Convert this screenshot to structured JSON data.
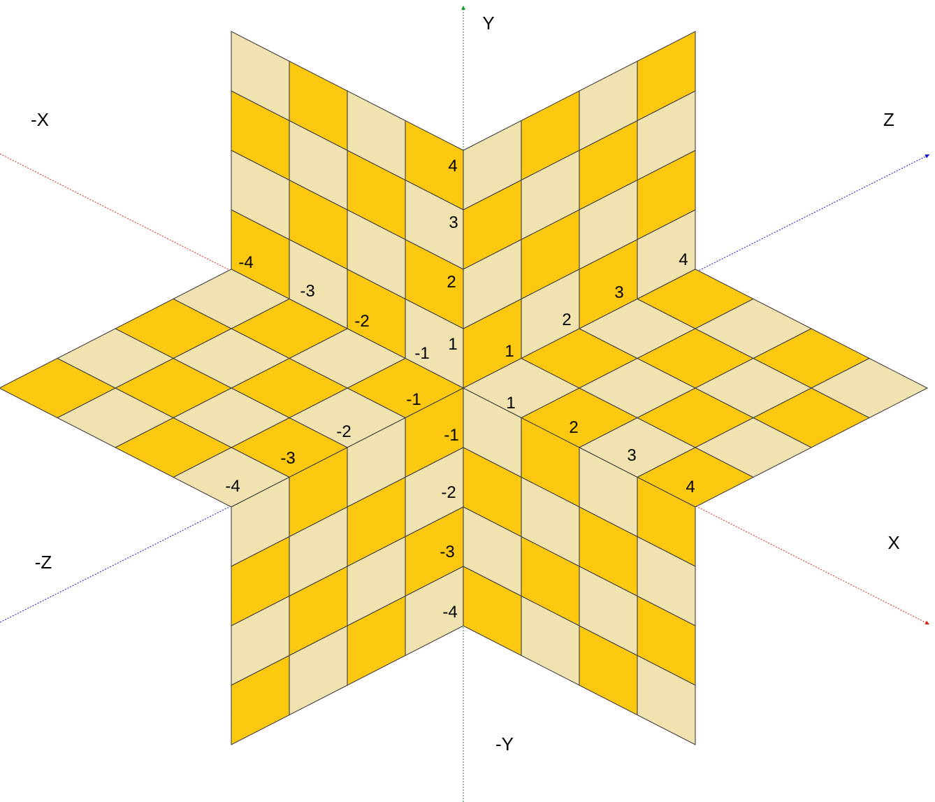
{
  "colors": {
    "tile_dark": "#FCC810",
    "tile_light": "#F0E3B0",
    "grid_stroke": "#404040",
    "axis_x": "#E02020",
    "axis_y": "#1A9A2A",
    "axis_z": "#1010D0"
  },
  "axes": {
    "x": {
      "label": "X"
    },
    "neg_x": {
      "label": "-X"
    },
    "y": {
      "label": "Y"
    },
    "neg_y": {
      "label": "-Y"
    },
    "z": {
      "label": "Z"
    },
    "neg_z": {
      "label": "-Z"
    }
  },
  "tick_labels": {
    "y_pos": [
      "1",
      "2",
      "3",
      "4"
    ],
    "y_neg": [
      "-1",
      "-2",
      "-3",
      "-4"
    ],
    "x_pos": [
      "1",
      "2",
      "3",
      "4"
    ],
    "x_neg": [
      "-1",
      "-2",
      "-3",
      "-4"
    ],
    "z_pos": [
      "1",
      "2",
      "3",
      "4"
    ],
    "z_neg": [
      "-1",
      "-2",
      "-3",
      "-4"
    ]
  },
  "grid": {
    "cells_per_side": 4
  }
}
